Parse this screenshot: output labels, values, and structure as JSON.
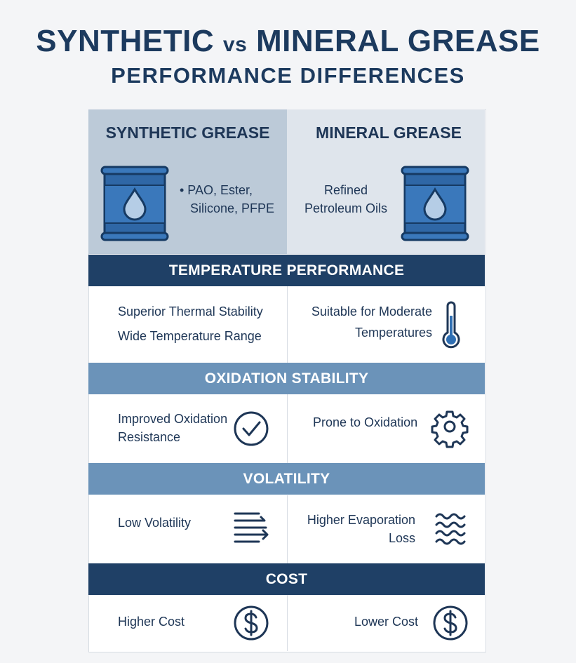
{
  "header": {
    "title_left": "SYNTHETIC",
    "title_vs": "vs",
    "title_right": "MINERAL GREASE",
    "subtitle": "PERFORMANCE DIFFERENCES"
  },
  "columns": [
    {
      "name": "SYNTHETIC GREASE",
      "base_oils": [
        "• PAO, Ester,",
        "Silicone, PFPE"
      ]
    },
    {
      "name": "MINERAL GREASE",
      "base_oils": [
        "Refined",
        "Petroleum Oils"
      ]
    }
  ],
  "sections": [
    {
      "title": "TEMPERATURE PERFORMANCE",
      "synthetic": [
        "Superior Thermal Stability",
        "Wide Temperature Range"
      ],
      "mineral": [
        "Suitable for Moderate",
        "Temperatures"
      ]
    },
    {
      "title": "OXIDATION STABILITY",
      "synthetic": [
        "Improved Oxidation",
        "Resistance"
      ],
      "mineral": [
        "Prone to Oxidation"
      ]
    },
    {
      "title": "VOLATILITY",
      "synthetic": [
        "Low Volatility"
      ],
      "mineral": [
        "Higher Evaporation",
        "Loss"
      ]
    },
    {
      "title": "COST",
      "synthetic": [
        "Higher Cost"
      ],
      "mineral": [
        "Lower Cost"
      ]
    }
  ]
}
